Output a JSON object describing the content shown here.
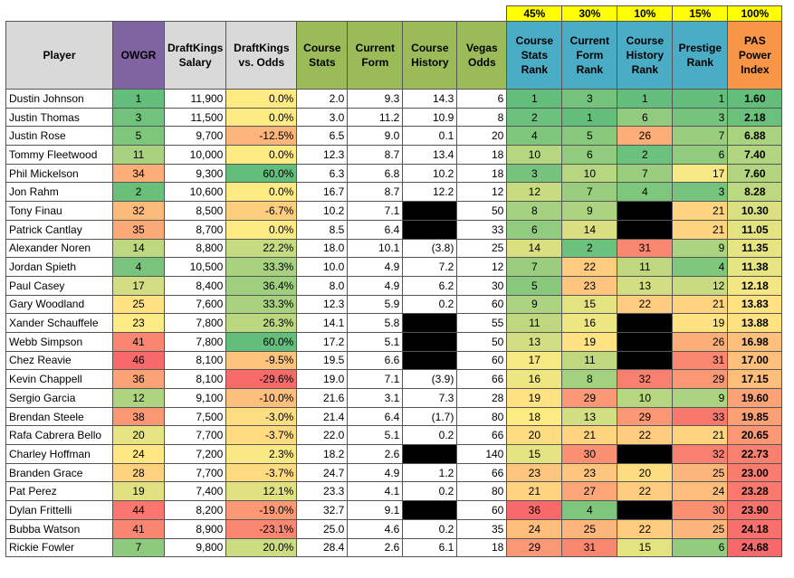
{
  "weights": [
    "45%",
    "30%",
    "10%",
    "15%",
    "100%"
  ],
  "headers": [
    {
      "label": "Player",
      "color": "#d9d9d9"
    },
    {
      "label": "OWGR",
      "color": "#8064a2"
    },
    {
      "label": "DraftKings Salary",
      "color": "#d9d9d9"
    },
    {
      "label": "DraftKings vs. Odds",
      "color": "#d9d9d9"
    },
    {
      "label": "Course Stats",
      "color": "#9bbb59"
    },
    {
      "label": "Current Form",
      "color": "#9bbb59"
    },
    {
      "label": "Course History",
      "color": "#9bbb59"
    },
    {
      "label": "Vegas Odds",
      "color": "#9bbb59"
    },
    {
      "label": "Course Stats Rank",
      "color": "#4bacc6"
    },
    {
      "label": "Current Form Rank",
      "color": "#4bacc6"
    },
    {
      "label": "Course History Rank",
      "color": "#4bacc6"
    },
    {
      "label": "Prestige Rank",
      "color": "#4bacc6"
    },
    {
      "label": "PAS Power Index",
      "color": "#f79646"
    }
  ],
  "rows": [
    {
      "player": "Dustin Johnson",
      "owgr": "1",
      "salary": "11,900",
      "dk_vs_odds": "0.0%",
      "course_stats": "2.0",
      "current_form": "9.3",
      "course_history": "14.3",
      "vegas_odds": "6",
      "cs_rank": "1",
      "cf_rank": "3",
      "ch_rank": "1",
      "prestige_rank": "1",
      "pas_index": "1.60"
    },
    {
      "player": "Justin Thomas",
      "owgr": "3",
      "salary": "11,500",
      "dk_vs_odds": "0.0%",
      "course_stats": "3.0",
      "current_form": "11.2",
      "course_history": "10.9",
      "vegas_odds": "8",
      "cs_rank": "2",
      "cf_rank": "1",
      "ch_rank": "6",
      "prestige_rank": "3",
      "pas_index": "2.18"
    },
    {
      "player": "Justin Rose",
      "owgr": "5",
      "salary": "9,700",
      "dk_vs_odds": "-12.5%",
      "course_stats": "6.5",
      "current_form": "9.0",
      "course_history": "0.1",
      "vegas_odds": "20",
      "cs_rank": "4",
      "cf_rank": "5",
      "ch_rank": "26",
      "prestige_rank": "7",
      "pas_index": "6.88"
    },
    {
      "player": "Tommy Fleetwood",
      "owgr": "11",
      "salary": "10,000",
      "dk_vs_odds": "0.0%",
      "course_stats": "12.3",
      "current_form": "8.7",
      "course_history": "13.4",
      "vegas_odds": "18",
      "cs_rank": "10",
      "cf_rank": "6",
      "ch_rank": "2",
      "prestige_rank": "6",
      "pas_index": "7.40"
    },
    {
      "player": "Phil Mickelson",
      "owgr": "34",
      "salary": "9,300",
      "dk_vs_odds": "60.0%",
      "course_stats": "6.3",
      "current_form": "6.8",
      "course_history": "10.2",
      "vegas_odds": "18",
      "cs_rank": "3",
      "cf_rank": "10",
      "ch_rank": "7",
      "prestige_rank": "17",
      "pas_index": "7.60"
    },
    {
      "player": "Jon Rahm",
      "owgr": "2",
      "salary": "10,600",
      "dk_vs_odds": "0.0%",
      "course_stats": "16.7",
      "current_form": "8.7",
      "course_history": "12.2",
      "vegas_odds": "12",
      "cs_rank": "12",
      "cf_rank": "7",
      "ch_rank": "4",
      "prestige_rank": "3",
      "pas_index": "8.28"
    },
    {
      "player": "Tony Finau",
      "owgr": "32",
      "salary": "8,500",
      "dk_vs_odds": "-6.7%",
      "course_stats": "10.2",
      "current_form": "7.1",
      "course_history": "",
      "vegas_odds": "50",
      "cs_rank": "8",
      "cf_rank": "9",
      "ch_rank": "",
      "prestige_rank": "21",
      "pas_index": "10.30"
    },
    {
      "player": "Patrick Cantlay",
      "owgr": "35",
      "salary": "8,700",
      "dk_vs_odds": "0.0%",
      "course_stats": "8.5",
      "current_form": "6.4",
      "course_history": "",
      "vegas_odds": "33",
      "cs_rank": "6",
      "cf_rank": "14",
      "ch_rank": "",
      "prestige_rank": "21",
      "pas_index": "11.05"
    },
    {
      "player": "Alexander Noren",
      "owgr": "14",
      "salary": "8,800",
      "dk_vs_odds": "22.2%",
      "course_stats": "18.0",
      "current_form": "10.1",
      "course_history": "(3.8)",
      "vegas_odds": "25",
      "cs_rank": "14",
      "cf_rank": "2",
      "ch_rank": "31",
      "prestige_rank": "9",
      "pas_index": "11.35"
    },
    {
      "player": "Jordan Spieth",
      "owgr": "4",
      "salary": "10,500",
      "dk_vs_odds": "33.3%",
      "course_stats": "10.0",
      "current_form": "4.9",
      "course_history": "7.2",
      "vegas_odds": "12",
      "cs_rank": "7",
      "cf_rank": "22",
      "ch_rank": "11",
      "prestige_rank": "4",
      "pas_index": "11.38"
    },
    {
      "player": "Paul Casey",
      "owgr": "17",
      "salary": "8,400",
      "dk_vs_odds": "36.4%",
      "course_stats": "8.0",
      "current_form": "4.9",
      "course_history": "6.2",
      "vegas_odds": "30",
      "cs_rank": "5",
      "cf_rank": "23",
      "ch_rank": "13",
      "prestige_rank": "12",
      "pas_index": "12.18"
    },
    {
      "player": "Gary Woodland",
      "owgr": "25",
      "salary": "7,600",
      "dk_vs_odds": "33.3%",
      "course_stats": "12.3",
      "current_form": "5.9",
      "course_history": "0.2",
      "vegas_odds": "60",
      "cs_rank": "9",
      "cf_rank": "15",
      "ch_rank": "22",
      "prestige_rank": "21",
      "pas_index": "13.83"
    },
    {
      "player": "Xander Schauffele",
      "owgr": "23",
      "salary": "7,800",
      "dk_vs_odds": "26.3%",
      "course_stats": "14.1",
      "current_form": "5.8",
      "course_history": "",
      "vegas_odds": "55",
      "cs_rank": "11",
      "cf_rank": "16",
      "ch_rank": "",
      "prestige_rank": "19",
      "pas_index": "13.88"
    },
    {
      "player": "Webb Simpson",
      "owgr": "41",
      "salary": "7,800",
      "dk_vs_odds": "60.0%",
      "course_stats": "17.2",
      "current_form": "5.1",
      "course_history": "",
      "vegas_odds": "50",
      "cs_rank": "13",
      "cf_rank": "19",
      "ch_rank": "",
      "prestige_rank": "26",
      "pas_index": "16.98"
    },
    {
      "player": "Chez Reavie",
      "owgr": "46",
      "salary": "8,100",
      "dk_vs_odds": "-9.5%",
      "course_stats": "19.5",
      "current_form": "6.6",
      "course_history": "",
      "vegas_odds": "60",
      "cs_rank": "17",
      "cf_rank": "11",
      "ch_rank": "",
      "prestige_rank": "31",
      "pas_index": "17.00"
    },
    {
      "player": "Kevin Chappell",
      "owgr": "36",
      "salary": "8,100",
      "dk_vs_odds": "-29.6%",
      "course_stats": "19.0",
      "current_form": "7.1",
      "course_history": "(3.9)",
      "vegas_odds": "66",
      "cs_rank": "16",
      "cf_rank": "8",
      "ch_rank": "32",
      "prestige_rank": "29",
      "pas_index": "17.15"
    },
    {
      "player": "Sergio Garcia",
      "owgr": "12",
      "salary": "9,100",
      "dk_vs_odds": "-10.0%",
      "course_stats": "21.6",
      "current_form": "3.1",
      "course_history": "7.3",
      "vegas_odds": "28",
      "cs_rank": "19",
      "cf_rank": "29",
      "ch_rank": "10",
      "prestige_rank": "9",
      "pas_index": "19.60"
    },
    {
      "player": "Brendan Steele",
      "owgr": "38",
      "salary": "7,500",
      "dk_vs_odds": "-3.0%",
      "course_stats": "21.4",
      "current_form": "6.4",
      "course_history": "(1.7)",
      "vegas_odds": "80",
      "cs_rank": "18",
      "cf_rank": "13",
      "ch_rank": "29",
      "prestige_rank": "33",
      "pas_index": "19.85"
    },
    {
      "player": "Rafa Cabrera Bello",
      "owgr": "20",
      "salary": "7,700",
      "dk_vs_odds": "-3.7%",
      "course_stats": "22.0",
      "current_form": "5.1",
      "course_history": "0.2",
      "vegas_odds": "66",
      "cs_rank": "20",
      "cf_rank": "21",
      "ch_rank": "22",
      "prestige_rank": "21",
      "pas_index": "20.65"
    },
    {
      "player": "Charley Hoffman",
      "owgr": "24",
      "salary": "7,200",
      "dk_vs_odds": "2.3%",
      "course_stats": "18.2",
      "current_form": "2.6",
      "course_history": "",
      "vegas_odds": "140",
      "cs_rank": "15",
      "cf_rank": "30",
      "ch_rank": "",
      "prestige_rank": "32",
      "pas_index": "22.73"
    },
    {
      "player": "Branden Grace",
      "owgr": "28",
      "salary": "7,700",
      "dk_vs_odds": "-3.7%",
      "course_stats": "24.7",
      "current_form": "4.9",
      "course_history": "1.2",
      "vegas_odds": "66",
      "cs_rank": "23",
      "cf_rank": "23",
      "ch_rank": "20",
      "prestige_rank": "25",
      "pas_index": "23.00"
    },
    {
      "player": "Pat Perez",
      "owgr": "19",
      "salary": "7,400",
      "dk_vs_odds": "12.1%",
      "course_stats": "23.3",
      "current_form": "4.1",
      "course_history": "0.2",
      "vegas_odds": "80",
      "cs_rank": "21",
      "cf_rank": "27",
      "ch_rank": "22",
      "prestige_rank": "24",
      "pas_index": "23.28"
    },
    {
      "player": "Dylan Frittelli",
      "owgr": "44",
      "salary": "8,200",
      "dk_vs_odds": "-19.0%",
      "course_stats": "32.7",
      "current_form": "9.1",
      "course_history": "",
      "vegas_odds": "60",
      "cs_rank": "36",
      "cf_rank": "4",
      "ch_rank": "",
      "prestige_rank": "30",
      "pas_index": "23.90"
    },
    {
      "player": "Bubba Watson",
      "owgr": "41",
      "salary": "8,900",
      "dk_vs_odds": "-23.1%",
      "course_stats": "25.0",
      "current_form": "4.6",
      "course_history": "0.2",
      "vegas_odds": "35",
      "cs_rank": "24",
      "cf_rank": "25",
      "ch_rank": "22",
      "prestige_rank": "25",
      "pas_index": "24.18"
    },
    {
      "player": "Rickie Fowler",
      "owgr": "7",
      "salary": "9,800",
      "dk_vs_odds": "20.0%",
      "course_stats": "28.4",
      "current_form": "2.6",
      "course_history": "6.1",
      "vegas_odds": "18",
      "cs_rank": "29",
      "cf_rank": "31",
      "ch_rank": "15",
      "prestige_rank": "6",
      "pas_index": "24.68"
    }
  ],
  "missing_cell_color": "#000000"
}
